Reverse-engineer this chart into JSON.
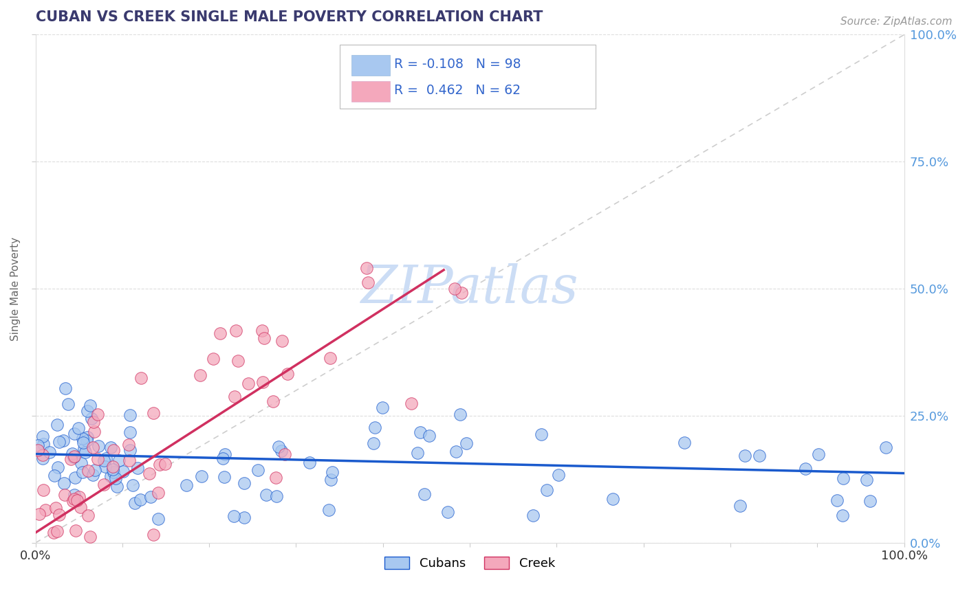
{
  "title": "CUBAN VS CREEK SINGLE MALE POVERTY CORRELATION CHART",
  "source_text": "Source: ZipAtlas.com",
  "ylabel": "Single Male Poverty",
  "title_color": "#3a3a6e",
  "title_fontsize": 15,
  "cubans_color": "#a8c8f0",
  "creek_color": "#f4a8bc",
  "cubans_line_color": "#1a5acd",
  "creek_line_color": "#d03060",
  "ref_line_color": "#c8c8c8",
  "watermark_color": "#ccddf5",
  "legend_text_color": "#3366cc",
  "right_axis_color": "#5599dd",
  "source_color": "#999999"
}
